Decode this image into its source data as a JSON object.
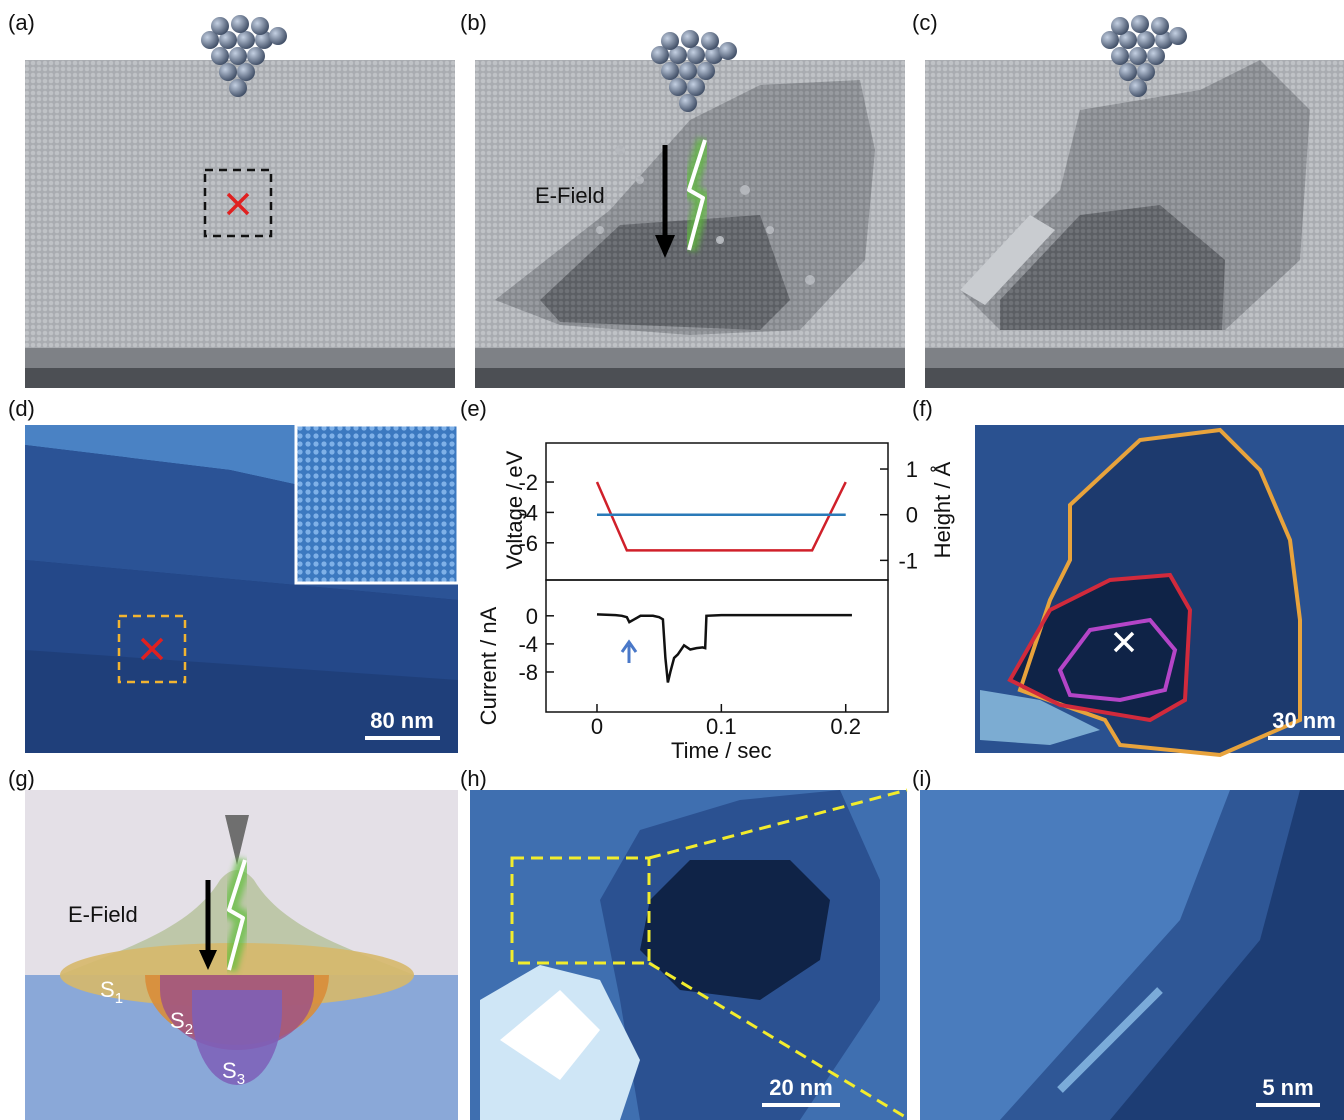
{
  "panel_labels": [
    "(a)",
    "(b)",
    "(c)",
    "(d)",
    "(e)",
    "(f)",
    "(g)",
    "(h)",
    "(i)"
  ],
  "annotations": {
    "e_field_b": "E-Field",
    "e_field_g": "E-Field"
  },
  "scale_bars": {
    "d": "80 nm",
    "f": "30 nm",
    "h": "20 nm",
    "i": "5 nm"
  },
  "regions": [
    {
      "letter": "S",
      "sub": "1"
    },
    {
      "letter": "S",
      "sub": "2"
    },
    {
      "letter": "S",
      "sub": "3"
    }
  ],
  "chart_data": [
    {
      "type": "line",
      "ylabel": "Voltage / eV",
      "y2label": "Height / Å",
      "xlim": [
        -0.041,
        0.234
      ],
      "ylim": [
        -8.45,
        0.57
      ],
      "yticks": [
        -2,
        -4,
        -6
      ],
      "y2lim": [
        -1.43,
        1.57
      ],
      "y2ticks": [
        1,
        0,
        -1
      ],
      "series": [
        {
          "color": "#d0202a",
          "x": [
            0,
            0.024,
            0.173,
            0.2
          ],
          "values": [
            -2,
            -6.5,
            -6.5,
            -2
          ]
        },
        {
          "color": "#2a7ab8",
          "axis": "y2",
          "x": [
            0,
            0.2
          ],
          "values": [
            0,
            0
          ]
        }
      ]
    },
    {
      "type": "line",
      "xlabel": "Time / sec",
      "ylabel": "Current / nA",
      "xlim": [
        -0.041,
        0.234
      ],
      "ylim": [
        -13.7,
        5.1
      ],
      "xticks": [
        0,
        0.1,
        0.2
      ],
      "yticks": [
        0,
        -4,
        -8
      ],
      "series": [
        {
          "color": "#111111",
          "x": [
            0,
            0.015,
            0.02,
            0.024,
            0.026,
            0.03,
            0.035,
            0.045,
            0.05,
            0.053,
            0.055,
            0.057,
            0.059,
            0.062,
            0.065,
            0.07,
            0.075,
            0.08,
            0.085,
            0.087,
            0.088,
            0.1,
            0.15,
            0.205
          ],
          "values": [
            0.2,
            0.1,
            0,
            -0.2,
            -0.9,
            -0.5,
            0,
            0,
            -0.2,
            -0.5,
            -6,
            -9.5,
            -8,
            -6,
            -5.5,
            -4.2,
            -4.8,
            -4.6,
            -4.5,
            -4.6,
            0,
            0.1,
            0.1,
            0.1
          ]
        }
      ]
    }
  ]
}
